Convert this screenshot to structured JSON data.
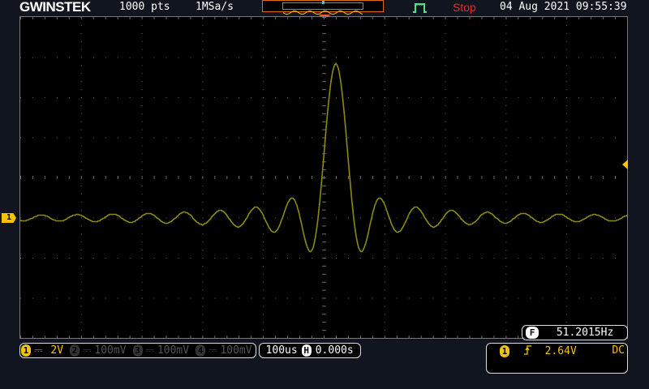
{
  "header": {
    "logo": "GWINSTEK",
    "points": "1000 pts",
    "sample_rate": "1MSa/s",
    "run_state": "Stop",
    "datetime": "04 Aug 2021 09:55:39",
    "trigger_icon": "pulse-icon"
  },
  "colors": {
    "trace": "#8a8a10",
    "ch1": "#f5c400",
    "stop": "#ff2020",
    "accent": "#e06a1a",
    "trigger_status": "#4ee08a"
  },
  "waveform": {
    "shape": "sinc",
    "baseline_div": -1.0,
    "peak_div": 2.85
  },
  "frequency": {
    "icon": "F",
    "value": "51.2015Hz"
  },
  "channels": [
    {
      "num": "1",
      "coupling": "⎓",
      "scale": "2V",
      "active": true
    },
    {
      "num": "2",
      "coupling": "⎓",
      "scale": "100mV",
      "active": false
    },
    {
      "num": "3",
      "coupling": "⎓",
      "scale": "100mV",
      "active": false
    },
    {
      "num": "4",
      "coupling": "⎓",
      "scale": "100mV",
      "active": false
    }
  ],
  "timebase": {
    "scale": "100us",
    "h_icon": "H",
    "position": "0.000s"
  },
  "trigger": {
    "source": "1",
    "slope": "rising-edge",
    "level": "2.64V",
    "coupling": "DC"
  },
  "ch1_marker": "1"
}
